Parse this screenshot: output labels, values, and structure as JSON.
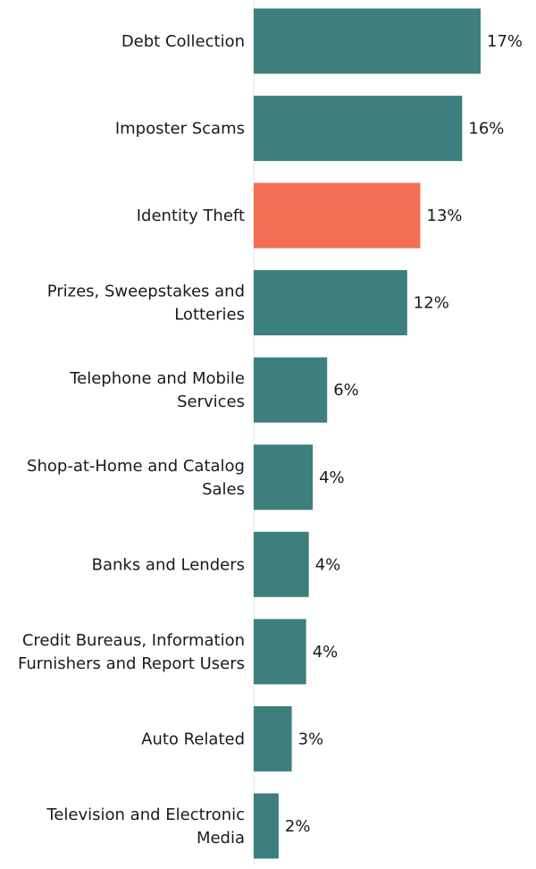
{
  "chart_data": {
    "type": "bar",
    "orientation": "horizontal",
    "categories": [
      [
        "Debt Collection"
      ],
      [
        "Imposter Scams"
      ],
      [
        "Identity Theft"
      ],
      [
        "Prizes, Sweepstakes and",
        "Lotteries"
      ],
      [
        "Telephone and Mobile",
        "Services"
      ],
      [
        "Shop-at-Home and Catalog",
        "Sales"
      ],
      [
        "Banks and Lenders"
      ],
      [
        "Credit Bureaus, Information",
        "Furnishers and Report Users"
      ],
      [
        "Auto Related"
      ],
      [
        "Television and Electronic",
        "Media"
      ]
    ],
    "values": [
      17.3,
      15.9,
      12.7,
      11.7,
      5.6,
      4.5,
      4.2,
      4.0,
      2.9,
      1.9
    ],
    "value_labels": [
      "17%",
      "16%",
      "13%",
      "12%",
      "6%",
      "4%",
      "4%",
      "4%",
      "3%",
      "2%"
    ],
    "colors": {
      "default": "#3d7f7d",
      "highlight": "#f26e55",
      "axis": "#e6e6e6"
    },
    "highlight_index": 2,
    "xlim": [
      0,
      17.3
    ],
    "grid": false,
    "legend": "none"
  }
}
